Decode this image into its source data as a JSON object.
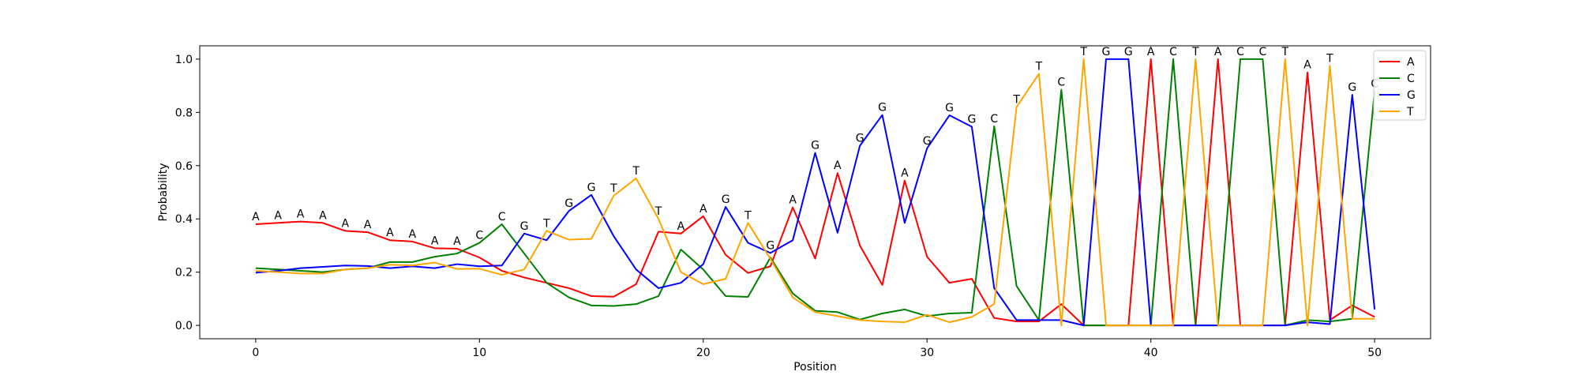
{
  "chart_data": {
    "type": "line",
    "title": "",
    "xlabel": "Position",
    "ylabel": "Probability",
    "xlim": [
      -2.5,
      52.5
    ],
    "ylim": [
      -0.05,
      1.05
    ],
    "xticks": [
      0,
      10,
      20,
      30,
      40,
      50
    ],
    "yticks": [
      0.0,
      0.2,
      0.4,
      0.6,
      0.8,
      1.0
    ],
    "xtick_labels": [
      "0",
      "10",
      "20",
      "30",
      "40",
      "50"
    ],
    "ytick_labels": [
      "0.0",
      "0.2",
      "0.4",
      "0.6",
      "0.8",
      "1.0"
    ],
    "grid": false,
    "legend": {
      "position": "top-right"
    },
    "x": [
      0,
      1,
      2,
      3,
      4,
      5,
      6,
      7,
      8,
      9,
      10,
      11,
      12,
      13,
      14,
      15,
      16,
      17,
      18,
      19,
      20,
      21,
      22,
      23,
      24,
      25,
      26,
      27,
      28,
      29,
      30,
      31,
      32,
      33,
      34,
      35,
      36,
      37,
      38,
      39,
      40,
      41,
      42,
      43,
      44,
      45,
      46,
      47,
      48,
      49,
      50
    ],
    "series": [
      {
        "name": "A",
        "color": "#ff0000",
        "values": [
          0.38,
          0.385,
          0.39,
          0.385,
          0.355,
          0.35,
          0.32,
          0.315,
          0.29,
          0.288,
          0.255,
          0.205,
          0.18,
          0.16,
          0.14,
          0.11,
          0.108,
          0.155,
          0.352,
          0.345,
          0.41,
          0.265,
          0.197,
          0.222,
          0.443,
          0.251,
          0.572,
          0.3,
          0.152,
          0.544,
          0.258,
          0.16,
          0.175,
          0.028,
          0.015,
          0.015,
          0.08,
          0.0,
          0.0,
          0.0,
          1.0,
          0.0,
          0.0,
          1.0,
          0.0,
          0.0,
          0.0,
          0.95,
          0.02,
          0.075,
          0.032
        ]
      },
      {
        "name": "C",
        "color": "#008000",
        "values": [
          0.215,
          0.21,
          0.205,
          0.2,
          0.21,
          0.215,
          0.238,
          0.238,
          0.258,
          0.27,
          0.31,
          0.38,
          0.27,
          0.16,
          0.105,
          0.075,
          0.073,
          0.08,
          0.11,
          0.285,
          0.21,
          0.11,
          0.107,
          0.255,
          0.12,
          0.055,
          0.05,
          0.022,
          0.045,
          0.06,
          0.035,
          0.045,
          0.048,
          0.748,
          0.148,
          0.02,
          0.885,
          0.0,
          0.0,
          0.0,
          0.0,
          1.0,
          0.0,
          0.0,
          1.0,
          1.0,
          0.0,
          0.02,
          0.015,
          0.025,
          0.88
        ]
      },
      {
        "name": "G",
        "color": "#0000ff",
        "values": [
          0.198,
          0.205,
          0.215,
          0.22,
          0.225,
          0.223,
          0.215,
          0.222,
          0.215,
          0.23,
          0.222,
          0.225,
          0.345,
          0.32,
          0.43,
          0.49,
          0.335,
          0.21,
          0.14,
          0.16,
          0.23,
          0.445,
          0.31,
          0.272,
          0.32,
          0.648,
          0.348,
          0.675,
          0.79,
          0.385,
          0.665,
          0.789,
          0.746,
          0.14,
          0.02,
          0.02,
          0.02,
          0.0,
          1.0,
          1.0,
          0.0,
          0.0,
          0.0,
          0.0,
          0.0,
          0.0,
          0.0,
          0.012,
          0.005,
          0.866,
          0.06
        ]
      },
      {
        "name": "T",
        "color": "#ffa500",
        "values": [
          0.205,
          0.2,
          0.195,
          0.195,
          0.21,
          0.215,
          0.228,
          0.225,
          0.236,
          0.212,
          0.213,
          0.19,
          0.21,
          0.355,
          0.322,
          0.325,
          0.487,
          0.552,
          0.4,
          0.2,
          0.155,
          0.175,
          0.385,
          0.25,
          0.105,
          0.05,
          0.035,
          0.02,
          0.015,
          0.012,
          0.04,
          0.012,
          0.032,
          0.08,
          0.82,
          0.945,
          0.0,
          1.0,
          0.0,
          0.0,
          0.0,
          0.0,
          1.0,
          0.0,
          0.0,
          0.0,
          1.0,
          0.0,
          0.975,
          0.025,
          0.025
        ]
      }
    ],
    "annotations": [
      "A",
      "A",
      "A",
      "A",
      "A",
      "A",
      "A",
      "A",
      "A",
      "A",
      "C",
      "C",
      "G",
      "T",
      "G",
      "G",
      "T",
      "T",
      "T",
      "A",
      "A",
      "G",
      "T",
      "G",
      "A",
      "G",
      "A",
      "G",
      "G",
      "A",
      "G",
      "G",
      "G",
      "C",
      "T",
      "T",
      "C",
      "T",
      "G",
      "G",
      "A",
      "C",
      "T",
      "A",
      "C",
      "C",
      "T",
      "A",
      "T",
      "G",
      "C"
    ]
  }
}
